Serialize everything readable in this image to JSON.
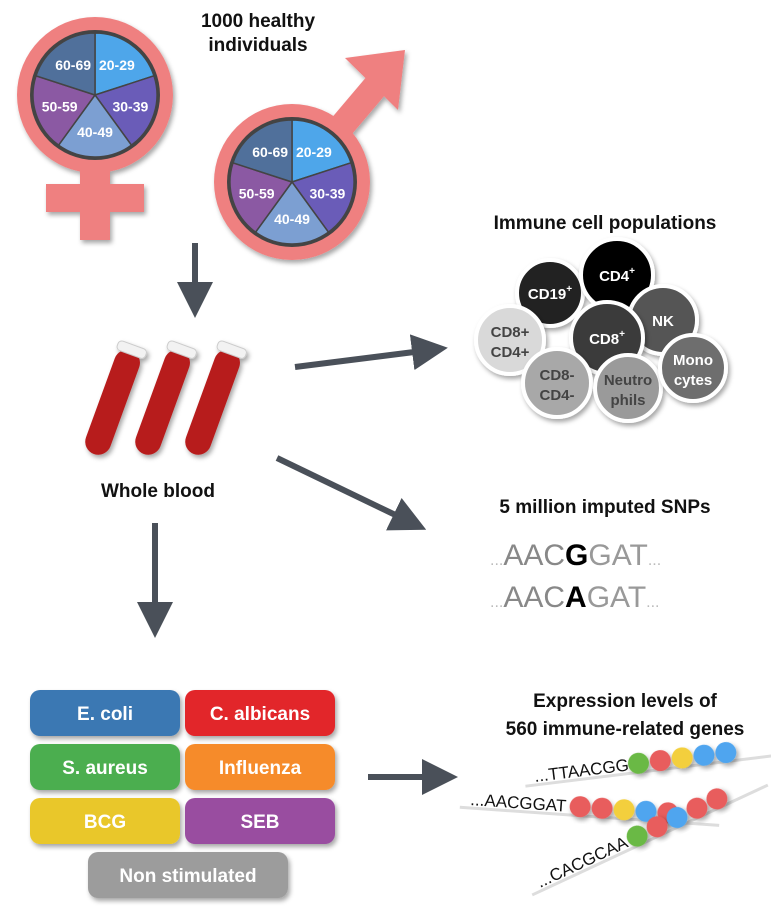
{
  "title": "1000 healthy individuals",
  "title_lines": [
    "1000 healthy",
    "individuals"
  ],
  "age_groups": [
    "20-29",
    "30-39",
    "40-49",
    "50-59",
    "60-69"
  ],
  "colors": {
    "symbol": "#ef8080",
    "age_20_29": "#4ea6ea",
    "age_30_39": "#6a5cb8",
    "age_40_49": "#7c9fd2",
    "age_50_59": "#8b59a3",
    "age_60_69": "#50709b",
    "arrow": "#4a5059",
    "blood": "#b71c1c"
  },
  "whole_blood": "Whole blood",
  "immune": {
    "title": "Immune cell populations",
    "cells": [
      {
        "label": [
          "CD19",
          "+"
        ],
        "color": "#222"
      },
      {
        "label": [
          "CD4",
          "+"
        ],
        "color": "#000"
      },
      {
        "label": [
          "NK"
        ],
        "color": "#555"
      },
      {
        "label": [
          "CD8+",
          "CD4+"
        ],
        "color": "#d9d9d9"
      },
      {
        "label": [
          "CD8",
          "+"
        ],
        "color": "#3a3a3a"
      },
      {
        "label": [
          "CD8-",
          "CD4-"
        ],
        "color": "#a8a8a8"
      },
      {
        "label": [
          "Neutro",
          "phils"
        ],
        "color": "#9a9a9a"
      },
      {
        "label": [
          "Mono",
          "cytes"
        ],
        "color": "#6e6e6e"
      }
    ]
  },
  "snps": {
    "title": "5 million imputed SNPs",
    "seq1": {
      "pre": "AAC",
      "var": "G",
      "post": "GAT"
    },
    "seq2": {
      "pre": "AAC",
      "var": "A",
      "post": "GAT"
    },
    "ellipsis": "..."
  },
  "expression": {
    "title_lines": [
      "Expression levels of",
      "560 immune-related genes"
    ],
    "sequences": [
      "...TTAACGG",
      "...AACGGAT",
      "...CACGCAA"
    ]
  },
  "stimuli": [
    {
      "label": "E. coli",
      "color": "#3b78b3"
    },
    {
      "label": "C. albicans",
      "color": "#e2262c"
    },
    {
      "label": "S. aureus",
      "color": "#4cae4f"
    },
    {
      "label": "Influenza",
      "color": "#f68b2c"
    },
    {
      "label": "BCG",
      "color": "#e9c72b"
    },
    {
      "label": "SEB",
      "color": "#994ea0"
    },
    {
      "label": "Non stimulated",
      "color": "#9c9c9c"
    }
  ]
}
